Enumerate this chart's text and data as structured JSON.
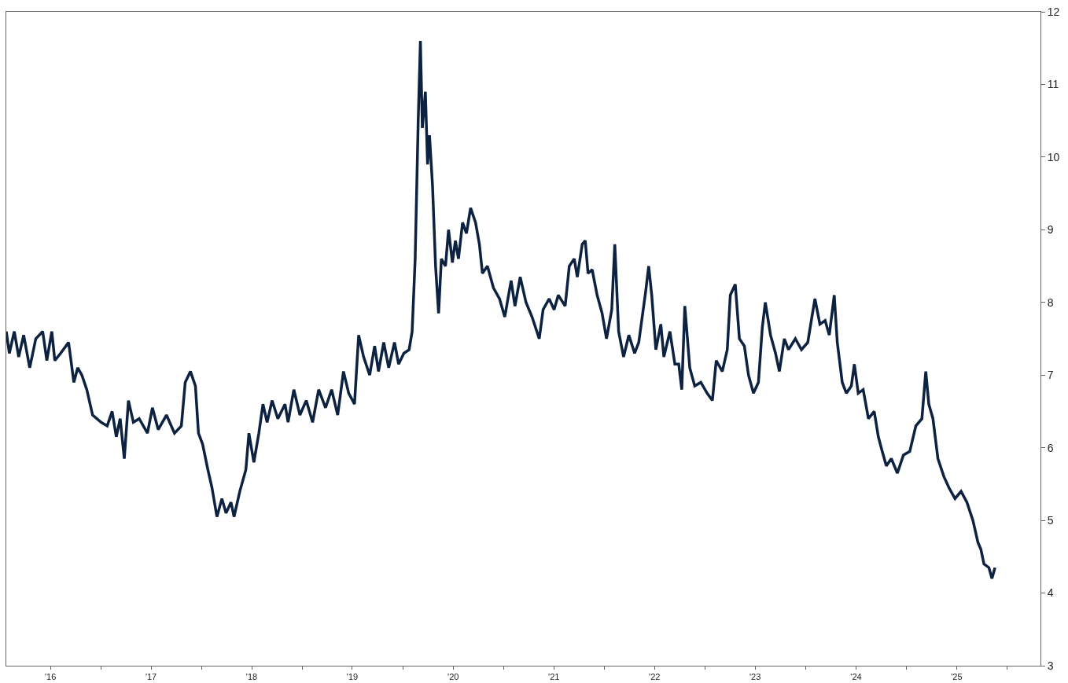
{
  "chart_data": {
    "type": "line",
    "x": [
      "2016-01-23",
      "2016-02-03",
      "2016-02-21",
      "2016-03-08",
      "2016-03-26",
      "2016-04-17",
      "2016-05-09",
      "2016-06-03",
      "2016-06-18",
      "2016-07-06",
      "2016-07-17",
      "2016-08-07",
      "2016-09-05",
      "2016-09-24",
      "2016-10-08",
      "2016-10-23",
      "2016-11-10",
      "2016-12-01",
      "2017-01-01",
      "2017-01-23",
      "2017-02-10",
      "2017-02-25",
      "2017-03-11",
      "2017-03-26",
      "2017-04-10",
      "2017-04-28",
      "2017-05-19",
      "2017-06-18",
      "2017-07-06",
      "2017-07-27",
      "2017-08-26",
      "2017-09-24",
      "2017-10-19",
      "2017-11-02",
      "2017-11-21",
      "2017-12-09",
      "2017-12-20",
      "2018-01-04",
      "2018-01-23",
      "2018-02-07",
      "2018-02-25",
      "2018-03-15",
      "2018-03-30",
      "2018-04-17",
      "2018-04-28",
      "2018-05-19",
      "2018-06-10",
      "2018-06-21",
      "2018-07-09",
      "2018-07-27",
      "2018-08-11",
      "2018-08-26",
      "2018-09-13",
      "2018-10-04",
      "2018-10-30",
      "2018-11-10",
      "2018-12-01",
      "2018-12-23",
      "2019-01-15",
      "2019-02-07",
      "2019-03-01",
      "2019-03-26",
      "2019-04-17",
      "2019-05-09",
      "2019-05-30",
      "2019-06-18",
      "2019-07-09",
      "2019-07-24",
      "2019-08-11",
      "2019-09-02",
      "2019-09-20",
      "2019-10-04",
      "2019-10-23",
      "2019-11-10",
      "2019-12-01",
      "2019-12-16",
      "2020-01-04",
      "2020-01-23",
      "2020-02-03",
      "2020-02-14",
      "2020-02-25",
      "2020-03-04",
      "2020-03-11",
      "2020-03-22",
      "2020-03-30",
      "2020-04-06",
      "2020-04-17",
      "2020-04-28",
      "2020-05-09",
      "2020-05-19",
      "2020-06-03",
      "2020-06-14",
      "2020-06-28",
      "2020-07-09",
      "2020-07-20",
      "2020-08-04",
      "2020-08-18",
      "2020-09-02",
      "2020-09-20",
      "2020-10-04",
      "2020-10-15",
      "2020-11-02",
      "2020-11-24",
      "2020-12-16",
      "2021-01-04",
      "2021-01-27",
      "2021-02-10",
      "2021-03-01",
      "2021-03-22",
      "2021-04-13",
      "2021-05-09",
      "2021-05-23",
      "2021-06-14",
      "2021-07-02",
      "2021-07-17",
      "2021-08-11",
      "2021-08-26",
      "2021-09-13",
      "2021-09-24",
      "2021-10-12",
      "2021-10-23",
      "2021-11-02",
      "2021-11-17",
      "2021-12-05",
      "2021-12-23",
      "2022-01-08",
      "2022-01-27",
      "2022-02-07",
      "2022-02-21",
      "2022-03-11",
      "2022-03-30",
      "2022-04-20",
      "2022-05-05",
      "2022-05-30",
      "2022-06-10",
      "2022-06-21",
      "2022-07-06",
      "2022-07-24",
      "2022-08-04",
      "2022-08-26",
      "2022-09-13",
      "2022-09-27",
      "2022-10-08",
      "2022-10-19",
      "2022-11-06",
      "2022-11-24",
      "2022-12-16",
      "2023-01-08",
      "2023-01-27",
      "2023-02-10",
      "2023-03-04",
      "2023-03-22",
      "2023-04-02",
      "2023-04-20",
      "2023-05-05",
      "2023-05-23",
      "2023-06-07",
      "2023-06-25",
      "2023-07-13",
      "2023-07-27",
      "2023-08-07",
      "2023-08-26",
      "2023-09-13",
      "2023-09-27",
      "2023-10-15",
      "2023-10-30",
      "2023-11-24",
      "2023-12-16",
      "2024-01-08",
      "2024-01-23",
      "2024-02-03",
      "2024-02-21",
      "2024-03-11",
      "2024-03-26",
      "2024-04-13",
      "2024-04-24",
      "2024-05-12",
      "2024-05-27",
      "2024-06-14",
      "2024-06-25",
      "2024-07-09",
      "2024-07-27",
      "2024-08-15",
      "2024-09-05",
      "2024-09-20",
      "2024-10-04",
      "2024-10-19",
      "2024-11-06",
      "2024-11-28",
      "2024-12-20",
      "2025-01-12",
      "2025-02-03",
      "2025-02-25",
      "2025-03-11",
      "2025-03-22",
      "2025-04-06",
      "2025-04-24",
      "2025-05-16",
      "2025-06-03",
      "2025-06-25",
      "2025-07-17",
      "2025-08-07",
      "2025-08-29",
      "2025-09-16",
      "2025-09-27",
      "2025-10-08",
      "2025-10-26",
      "2025-11-06",
      "2025-11-17"
    ],
    "series": [
      {
        "color": "#0d2240",
        "values": [
          7.6,
          7.3,
          7.6,
          7.25,
          7.55,
          7.1,
          7.5,
          7.6,
          7.2,
          7.6,
          7.2,
          7.3,
          7.45,
          6.9,
          7.1,
          7.0,
          6.8,
          6.45,
          6.35,
          6.3,
          6.5,
          6.15,
          6.4,
          5.85,
          6.65,
          6.35,
          6.4,
          6.2,
          6.55,
          6.25,
          6.45,
          6.2,
          6.3,
          6.9,
          7.05,
          6.85,
          6.2,
          6.05,
          5.7,
          5.45,
          5.05,
          5.3,
          5.1,
          5.25,
          5.05,
          5.4,
          5.7,
          6.2,
          5.8,
          6.2,
          6.6,
          6.35,
          6.65,
          6.4,
          6.6,
          6.35,
          6.8,
          6.45,
          6.65,
          6.35,
          6.8,
          6.55,
          6.8,
          6.45,
          7.05,
          6.75,
          6.6,
          7.55,
          7.25,
          7.0,
          7.4,
          7.05,
          7.45,
          7.1,
          7.45,
          7.15,
          7.3,
          7.35,
          7.6,
          8.6,
          10.5,
          11.6,
          10.4,
          10.9,
          9.9,
          10.3,
          9.6,
          8.5,
          7.85,
          8.6,
          8.5,
          9.0,
          8.55,
          8.85,
          8.6,
          9.1,
          8.95,
          9.3,
          9.1,
          8.8,
          8.4,
          8.5,
          8.2,
          8.05,
          7.8,
          8.3,
          7.95,
          8.35,
          8.0,
          7.8,
          7.5,
          7.9,
          8.05,
          7.9,
          8.1,
          7.95,
          8.5,
          8.6,
          8.35,
          8.8,
          8.85,
          8.4,
          8.45,
          8.1,
          7.85,
          7.5,
          7.9,
          8.8,
          7.6,
          7.25,
          7.55,
          7.3,
          7.45,
          8.15,
          8.5,
          8.1,
          7.35,
          7.7,
          7.25,
          7.6,
          7.15,
          7.15,
          6.8,
          7.95,
          7.1,
          6.85,
          6.9,
          6.75,
          6.65,
          7.2,
          7.05,
          7.35,
          8.1,
          8.25,
          7.5,
          7.4,
          7.0,
          6.75,
          6.9,
          7.65,
          8.0,
          7.55,
          7.3,
          7.05,
          7.5,
          7.35,
          7.5,
          7.35,
          7.45,
          7.8,
          8.05,
          7.7,
          7.75,
          7.55,
          8.1,
          7.45,
          6.9,
          6.75,
          6.85,
          7.15,
          6.75,
          6.8,
          6.4,
          6.5,
          6.15,
          5.95,
          5.75,
          5.85,
          5.65,
          5.9,
          5.95,
          6.3,
          6.4,
          7.05,
          6.6,
          6.4,
          5.85,
          5.6,
          5.45,
          5.3,
          5.4,
          5.25,
          5.0,
          4.7,
          4.6,
          4.4,
          4.35,
          4.2,
          4.35
        ]
      }
    ],
    "xlim": [
      "2016-01-23",
      "2026-05-01"
    ],
    "xticks": [
      {
        "value": "2016-07-01",
        "label": "'16"
      },
      {
        "value": "2017-01-01",
        "label": null
      },
      {
        "value": "2017-07-01",
        "label": "'17"
      },
      {
        "value": "2018-01-01",
        "label": null
      },
      {
        "value": "2018-07-01",
        "label": "'18"
      },
      {
        "value": "2019-01-01",
        "label": null
      },
      {
        "value": "2019-07-01",
        "label": "'19"
      },
      {
        "value": "2020-01-01",
        "label": null
      },
      {
        "value": "2020-07-01",
        "label": "'20"
      },
      {
        "value": "2021-01-01",
        "label": null
      },
      {
        "value": "2021-07-01",
        "label": "'21"
      },
      {
        "value": "2022-01-01",
        "label": null
      },
      {
        "value": "2022-07-01",
        "label": "'22"
      },
      {
        "value": "2023-01-01",
        "label": null
      },
      {
        "value": "2023-07-01",
        "label": "'23"
      },
      {
        "value": "2024-01-01",
        "label": null
      },
      {
        "value": "2024-07-01",
        "label": "'24"
      },
      {
        "value": "2025-01-01",
        "label": null
      },
      {
        "value": "2025-07-01",
        "label": "'25"
      },
      {
        "value": "2026-01-01",
        "label": null
      }
    ],
    "ylim": [
      3,
      12
    ],
    "yticks": [
      3,
      4,
      5,
      6,
      7,
      8,
      9,
      10,
      11,
      12
    ],
    "grid": false,
    "marker": "none",
    "line_style": "solid"
  }
}
